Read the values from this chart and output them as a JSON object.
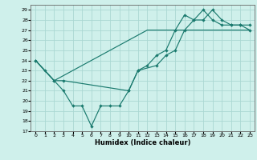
{
  "title": "",
  "xlabel": "Humidex (Indice chaleur)",
  "xlim": [
    -0.5,
    23.5
  ],
  "ylim": [
    17,
    29.5
  ],
  "yticks": [
    17,
    18,
    19,
    20,
    21,
    22,
    23,
    24,
    25,
    26,
    27,
    28,
    29
  ],
  "xticks": [
    0,
    1,
    2,
    3,
    4,
    5,
    6,
    7,
    8,
    9,
    10,
    11,
    12,
    13,
    14,
    15,
    16,
    17,
    18,
    19,
    20,
    21,
    22,
    23
  ],
  "line_color": "#1a7a6e",
  "bg_color": "#cff0eb",
  "grid_color": "#aad8d2",
  "line1_x": [
    0,
    1,
    2,
    3,
    4,
    5,
    6,
    7,
    8,
    9,
    10,
    11,
    12,
    13,
    14,
    15,
    16,
    17,
    18,
    19,
    20,
    21,
    22,
    23
  ],
  "line1_y": [
    24,
    23,
    22,
    22.5,
    23,
    23.5,
    24,
    24.5,
    25,
    25.5,
    26,
    26.5,
    27,
    27,
    27,
    27,
    27,
    27,
    27,
    27,
    27,
    27,
    27,
    27
  ],
  "line2_x": [
    0,
    1,
    2,
    3,
    4,
    5,
    6,
    7,
    8,
    9,
    10,
    11,
    12,
    13,
    14,
    15,
    16,
    17,
    18,
    19,
    20,
    21,
    22,
    23
  ],
  "line2_y": [
    24,
    23,
    22,
    21,
    19.5,
    19.5,
    17.5,
    19.5,
    19.5,
    19.5,
    21,
    23,
    23.5,
    24.5,
    25,
    27,
    28.5,
    28,
    29,
    28,
    27.5,
    27.5,
    27.5,
    27.5
  ],
  "line3_x": [
    0,
    2,
    3,
    10,
    11,
    13,
    14,
    15,
    16,
    17,
    18,
    19,
    20,
    21,
    22,
    23
  ],
  "line3_y": [
    24,
    22,
    22,
    21,
    23,
    23.5,
    24.5,
    25,
    27,
    28,
    28,
    29,
    28,
    27.5,
    27.5,
    27
  ],
  "xlabel_fontsize": 6,
  "tick_fontsize": 4.5,
  "linewidth": 0.85,
  "markersize": 2.2
}
